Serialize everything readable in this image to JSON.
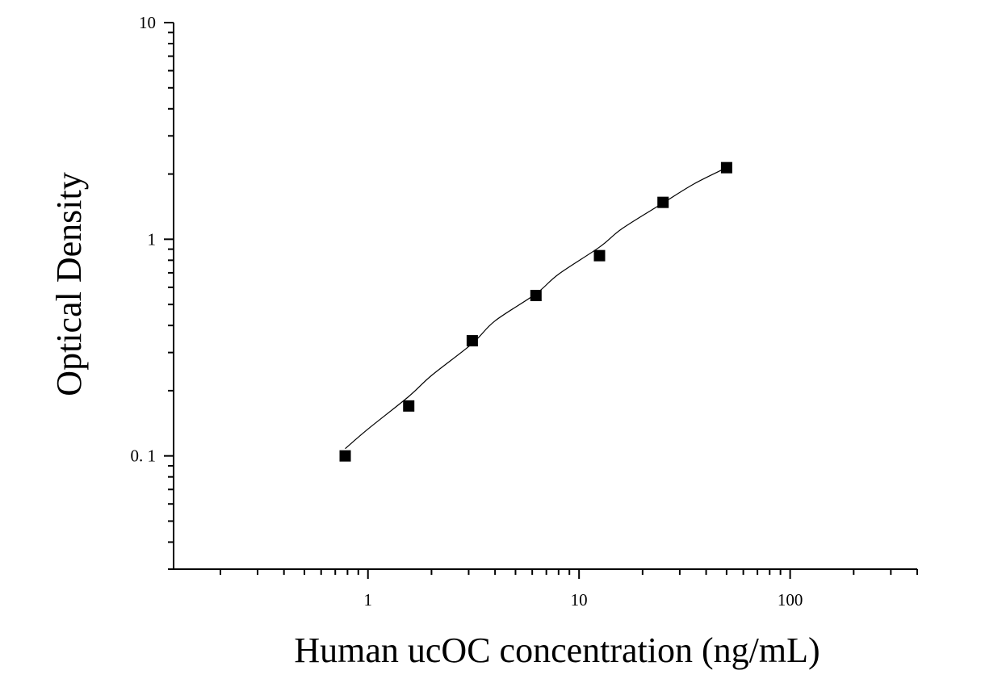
{
  "chart_data": {
    "type": "scatter",
    "title": "",
    "xlabel": "Human ucOC concentration (ng/mL)",
    "ylabel": "Optical Density",
    "x_scale": "log",
    "y_scale": "log",
    "xlim": [
      0.12,
      400
    ],
    "ylim": [
      0.03,
      10
    ],
    "x_major_ticks": [
      1,
      10,
      100
    ],
    "x_tick_labels": [
      "1",
      "10",
      "100"
    ],
    "y_major_ticks": [
      0.1,
      1,
      10
    ],
    "y_tick_labels": [
      "0. 1",
      "1",
      "10"
    ],
    "grid": false,
    "legend": "none",
    "marker": "square",
    "series": [
      {
        "x": [
          0.78,
          1.56,
          3.12,
          6.25,
          12.5,
          25,
          50
        ],
        "y": [
          0.1,
          0.17,
          0.34,
          0.55,
          0.84,
          1.48,
          2.14
        ]
      }
    ],
    "fit_curve": {
      "type": "four-parameter logistic",
      "x": [
        0.78,
        1.0,
        1.56,
        2.0,
        3.12,
        4.0,
        6.25,
        8.0,
        12.5,
        16.0,
        25,
        35,
        50
      ],
      "y": [
        0.108,
        0.133,
        0.188,
        0.235,
        0.33,
        0.42,
        0.56,
        0.69,
        0.92,
        1.12,
        1.47,
        1.8,
        2.14
      ]
    },
    "colors": {
      "marker": "#000000",
      "line": "#000000",
      "axis": "#000000"
    }
  }
}
